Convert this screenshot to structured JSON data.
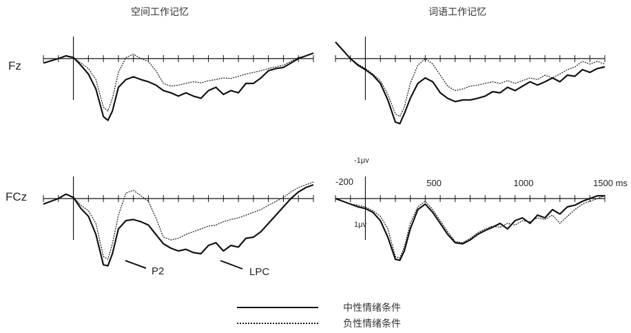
{
  "chart_data": {
    "type": "line",
    "x_unit_label": "ms",
    "xlim": [
      -200,
      1600
    ],
    "ylim_uv": [
      -1,
      1
    ],
    "y_orientation": "negative up",
    "tick_labels": [
      "-200",
      "500",
      "1000",
      "1500 ms"
    ],
    "scale_top_label": "-1μv",
    "scale_bottom_label": "1μv",
    "column_titles": [
      "空间工作记忆",
      "词语工作记忆"
    ],
    "row_labels": [
      "Fz",
      "FCz"
    ],
    "annotations": [
      {
        "panel": "spatial-fcz",
        "text": "P2"
      },
      {
        "panel": "spatial-fcz",
        "text": "LPC"
      }
    ],
    "legend": [
      {
        "label": "中性情绪条件",
        "style": "solid"
      },
      {
        "label": "负性情绪条件",
        "style": "dotted"
      }
    ],
    "panels": [
      {
        "id": "spatial-fz",
        "column": "空间工作记忆",
        "row": "Fz",
        "series": [
          {
            "name": "中性情绪条件",
            "style": "solid",
            "x": [
              -200,
              -150,
              -100,
              -50,
              0,
              50,
              100,
              150,
              200,
              230,
              260,
              300,
              350,
              400,
              450,
              500,
              550,
              600,
              650,
              700,
              750,
              800,
              850,
              900,
              950,
              1000,
              1050,
              1100,
              1150,
              1200,
              1250,
              1300,
              1350,
              1400,
              1450,
              1500,
              1550,
              1600
            ],
            "y": [
              0.08,
              0.04,
              0.0,
              -0.05,
              -0.02,
              0.12,
              0.28,
              0.55,
              1.05,
              1.12,
              0.95,
              0.52,
              0.38,
              0.33,
              0.38,
              0.42,
              0.48,
              0.58,
              0.62,
              0.68,
              0.62,
              0.68,
              0.72,
              0.58,
              0.52,
              0.65,
              0.58,
              0.62,
              0.45,
              0.45,
              0.35,
              0.22,
              0.18,
              0.16,
              0.08,
              0.0,
              -0.05,
              -0.1
            ]
          },
          {
            "name": "负性情绪条件",
            "style": "dotted",
            "x": [
              -200,
              -150,
              -100,
              -50,
              0,
              50,
              100,
              150,
              200,
              230,
              260,
              300,
              350,
              400,
              450,
              500,
              550,
              600,
              650,
              700,
              750,
              800,
              850,
              900,
              950,
              1000,
              1050,
              1100,
              1150,
              1200,
              1250,
              1300,
              1350,
              1400,
              1450,
              1500,
              1550,
              1600
            ],
            "y": [
              0.08,
              0.04,
              0.0,
              -0.05,
              -0.02,
              0.08,
              0.18,
              0.38,
              0.88,
              0.95,
              0.72,
              0.25,
              -0.02,
              -0.08,
              0.0,
              0.05,
              0.22,
              0.45,
              0.5,
              0.48,
              0.45,
              0.42,
              0.44,
              0.4,
              0.38,
              0.35,
              0.36,
              0.32,
              0.28,
              0.25,
              0.22,
              0.18,
              0.15,
              0.12,
              0.05,
              -0.02,
              -0.05,
              -0.1
            ]
          }
        ]
      },
      {
        "id": "verbal-fz",
        "column": "词语工作记忆",
        "row": "Fz",
        "series": [
          {
            "name": "中性情绪条件",
            "style": "solid",
            "x": [
              -200,
              -150,
              -100,
              -50,
              0,
              50,
              100,
              150,
              200,
              230,
              260,
              300,
              350,
              400,
              450,
              500,
              550,
              600,
              650,
              700,
              750,
              800,
              850,
              900,
              950,
              1000,
              1050,
              1100,
              1150,
              1200,
              1250,
              1300,
              1350,
              1400,
              1450,
              1500,
              1550,
              1600
            ],
            "y": [
              -0.3,
              -0.15,
              0.0,
              0.12,
              0.2,
              0.3,
              0.45,
              0.75,
              1.15,
              1.18,
              1.0,
              0.72,
              0.45,
              0.35,
              0.42,
              0.62,
              0.72,
              0.78,
              0.75,
              0.75,
              0.72,
              0.68,
              0.6,
              0.62,
              0.52,
              0.58,
              0.5,
              0.42,
              0.48,
              0.42,
              0.35,
              0.42,
              0.3,
              0.32,
              0.2,
              0.25,
              0.18,
              0.15
            ]
          },
          {
            "name": "负性情绪条件",
            "style": "dotted",
            "x": [
              -200,
              -150,
              -100,
              -50,
              0,
              50,
              100,
              150,
              200,
              230,
              260,
              300,
              350,
              400,
              450,
              500,
              550,
              600,
              650,
              700,
              750,
              800,
              850,
              900,
              950,
              1000,
              1050,
              1100,
              1150,
              1200,
              1250,
              1300,
              1350,
              1400,
              1450,
              1500,
              1550,
              1600
            ],
            "y": [
              -0.3,
              -0.15,
              0.0,
              0.1,
              0.18,
              0.28,
              0.4,
              0.65,
              1.0,
              1.05,
              0.88,
              0.45,
              0.12,
              0.0,
              0.1,
              0.3,
              0.5,
              0.58,
              0.55,
              0.5,
              0.48,
              0.45,
              0.42,
              0.45,
              0.4,
              0.45,
              0.4,
              0.35,
              0.38,
              0.3,
              0.35,
              0.28,
              0.2,
              0.15,
              0.05,
              0.1,
              0.05,
              0.1
            ]
          }
        ]
      },
      {
        "id": "spatial-fcz",
        "column": "空间工作记忆",
        "row": "FCz",
        "series": [
          {
            "name": "中性情绪条件",
            "style": "solid",
            "x": [
              -200,
              -150,
              -100,
              -50,
              0,
              50,
              100,
              150,
              200,
              230,
              260,
              300,
              350,
              400,
              450,
              500,
              550,
              600,
              650,
              700,
              750,
              800,
              850,
              900,
              950,
              1000,
              1050,
              1100,
              1150,
              1200,
              1250,
              1300,
              1350,
              1400,
              1450,
              1500,
              1550,
              1600
            ],
            "y": [
              0.1,
              0.05,
              0.0,
              -0.08,
              -0.02,
              0.18,
              0.32,
              0.65,
              1.2,
              1.22,
              1.0,
              0.55,
              0.4,
              0.38,
              0.42,
              0.48,
              0.65,
              0.82,
              0.9,
              0.95,
              0.92,
              0.98,
              1.0,
              0.85,
              0.8,
              0.95,
              0.85,
              0.88,
              0.72,
              0.7,
              0.6,
              0.45,
              0.3,
              0.15,
              0.0,
              -0.12,
              -0.2,
              -0.25
            ]
          },
          {
            "name": "负性情绪条件",
            "style": "dotted",
            "x": [
              -200,
              -150,
              -100,
              -50,
              0,
              50,
              100,
              150,
              200,
              230,
              260,
              300,
              350,
              400,
              450,
              500,
              550,
              600,
              650,
              700,
              750,
              800,
              850,
              900,
              950,
              1000,
              1050,
              1100,
              1150,
              1200,
              1250,
              1300,
              1350,
              1400,
              1450,
              1500,
              1550,
              1600
            ],
            "y": [
              0.1,
              0.05,
              0.0,
              -0.08,
              -0.02,
              0.12,
              0.22,
              0.45,
              1.05,
              1.1,
              0.82,
              0.3,
              -0.1,
              -0.15,
              -0.05,
              0.05,
              0.35,
              0.7,
              0.75,
              0.72,
              0.65,
              0.6,
              0.55,
              0.5,
              0.48,
              0.42,
              0.38,
              0.35,
              0.3,
              0.25,
              0.2,
              0.12,
              0.05,
              -0.02,
              -0.12,
              -0.2,
              -0.25,
              -0.3
            ]
          }
        ]
      },
      {
        "id": "verbal-fcz",
        "column": "词语工作记忆",
        "row": "FCz",
        "series": [
          {
            "name": "中性情绪条件",
            "style": "solid",
            "x": [
              -200,
              -150,
              -100,
              -50,
              0,
              50,
              100,
              150,
              200,
              230,
              260,
              300,
              350,
              400,
              450,
              500,
              550,
              600,
              650,
              700,
              750,
              800,
              850,
              900,
              950,
              1000,
              1050,
              1100,
              1150,
              1200,
              1250,
              1300,
              1350,
              1400,
              1450,
              1500,
              1550,
              1600
            ],
            "y": [
              0.0,
              0.05,
              0.1,
              0.15,
              0.18,
              0.25,
              0.4,
              0.7,
              1.1,
              1.12,
              0.95,
              0.55,
              0.2,
              0.1,
              0.25,
              0.45,
              0.65,
              0.8,
              0.82,
              0.75,
              0.65,
              0.58,
              0.52,
              0.45,
              0.55,
              0.4,
              0.35,
              0.45,
              0.3,
              0.35,
              0.2,
              0.28,
              0.15,
              0.12,
              0.05,
              0.0,
              -0.05,
              -0.05
            ]
          },
          {
            "name": "负性情绪条件",
            "style": "dotted",
            "x": [
              -200,
              -150,
              -100,
              -50,
              0,
              50,
              100,
              150,
              200,
              230,
              260,
              300,
              350,
              400,
              450,
              500,
              550,
              600,
              650,
              700,
              750,
              800,
              850,
              900,
              950,
              1000,
              1050,
              1100,
              1150,
              1200,
              1250,
              1300,
              1350,
              1400,
              1450,
              1500,
              1550,
              1600
            ],
            "y": [
              0.0,
              0.05,
              0.1,
              0.12,
              0.15,
              0.22,
              0.32,
              0.55,
              1.05,
              1.08,
              0.88,
              0.45,
              0.15,
              0.05,
              0.2,
              0.4,
              0.6,
              0.78,
              0.8,
              0.72,
              0.62,
              0.55,
              0.5,
              0.52,
              0.45,
              0.48,
              0.4,
              0.42,
              0.35,
              0.38,
              0.3,
              0.45,
              0.32,
              0.2,
              0.1,
              0.05,
              0.0,
              -0.05
            ]
          }
        ]
      }
    ]
  }
}
